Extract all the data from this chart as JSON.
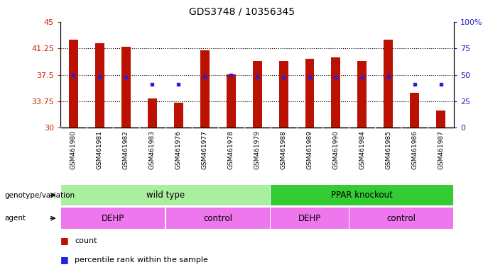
{
  "title": "GDS3748 / 10356345",
  "samples": [
    "GSM461980",
    "GSM461981",
    "GSM461982",
    "GSM461983",
    "GSM461976",
    "GSM461977",
    "GSM461978",
    "GSM461979",
    "GSM461988",
    "GSM461989",
    "GSM461990",
    "GSM461984",
    "GSM461985",
    "GSM461986",
    "GSM461987"
  ],
  "bar_heights": [
    42.5,
    42.0,
    41.5,
    34.2,
    33.6,
    41.0,
    37.6,
    39.5,
    39.5,
    39.8,
    40.0,
    39.5,
    42.5,
    35.0,
    32.5
  ],
  "blue_values": [
    37.5,
    37.3,
    37.2,
    36.2,
    36.2,
    37.3,
    37.5,
    37.3,
    37.2,
    37.2,
    37.2,
    37.2,
    37.3,
    36.2,
    36.2
  ],
  "ylim_left": [
    30,
    45
  ],
  "ylim_right": [
    0,
    100
  ],
  "yticks_left": [
    30,
    33.75,
    37.5,
    41.25,
    45
  ],
  "ytick_labels_left": [
    "30",
    "33.75",
    "37.5",
    "41.25",
    "45"
  ],
  "yticks_right": [
    0,
    25,
    50,
    75,
    100
  ],
  "ytick_labels_right": [
    "0",
    "25",
    "50",
    "75",
    "100%"
  ],
  "bar_color": "#bb1100",
  "blue_color": "#2222dd",
  "bar_bottom": 30,
  "bar_width": 0.35,
  "genotype_groups": [
    {
      "label": "wild type",
      "start": 0,
      "end": 7,
      "color": "#aaeea0"
    },
    {
      "label": "PPAR knockout",
      "start": 8,
      "end": 14,
      "color": "#33cc33"
    }
  ],
  "agent_groups": [
    {
      "label": "DEHP",
      "start": 0,
      "end": 3,
      "color": "#ee77ee"
    },
    {
      "label": "control",
      "start": 4,
      "end": 7,
      "color": "#ee77ee"
    },
    {
      "label": "DEHP",
      "start": 8,
      "end": 10,
      "color": "#ee77ee"
    },
    {
      "label": "control",
      "start": 11,
      "end": 14,
      "color": "#ee77ee"
    }
  ],
  "legend_items": [
    "count",
    "percentile rank within the sample"
  ],
  "bg_color": "#ffffff",
  "left_label_color": "#cc2200",
  "right_label_color": "#2222cc",
  "xticklabel_bg": "#cccccc",
  "grid_linestyle": ":",
  "grid_linewidth": 0.8,
  "grid_color": "#000000"
}
